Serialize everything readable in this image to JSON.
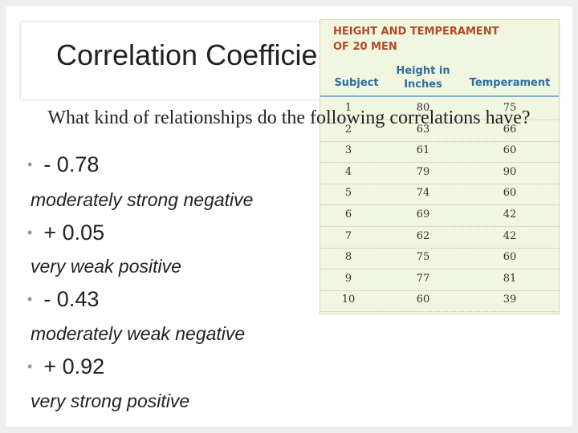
{
  "slide": {
    "title": "Correlation Coefficient",
    "question": "What kind of relationships do the following correlations have?",
    "items": [
      {
        "value": "- 0.78",
        "answer": "moderately strong negative"
      },
      {
        "value": "+ 0.05",
        "answer": "very weak positive"
      },
      {
        "value": "- 0.43",
        "answer": "moderately weak negative"
      },
      {
        "value": "+ 0.92",
        "answer": "very strong positive"
      }
    ],
    "bullet_glyph": "•"
  },
  "table": {
    "title_line1": "HEIGHT AND TEMPERAMENT",
    "title_line2": "OF 20 MEN",
    "headers": {
      "subject": "Subject",
      "height_line1": "Height in",
      "height_line2": "Inches",
      "temperament": "Temperament"
    },
    "rows": [
      {
        "subject": "1",
        "height": "80",
        "temperament": "75"
      },
      {
        "subject": "2",
        "height": "63",
        "temperament": "66"
      },
      {
        "subject": "3",
        "height": "61",
        "temperament": "60"
      },
      {
        "subject": "4",
        "height": "79",
        "temperament": "90"
      },
      {
        "subject": "5",
        "height": "74",
        "temperament": "60"
      },
      {
        "subject": "6",
        "height": "69",
        "temperament": "42"
      },
      {
        "subject": "7",
        "height": "62",
        "temperament": "42"
      },
      {
        "subject": "8",
        "height": "75",
        "temperament": "60"
      },
      {
        "subject": "9",
        "height": "77",
        "temperament": "81"
      },
      {
        "subject": "10",
        "height": "60",
        "temperament": "39"
      }
    ],
    "colors": {
      "title": "#b24a22",
      "header": "#2a6fa1",
      "background": "#f1f6e1"
    }
  }
}
